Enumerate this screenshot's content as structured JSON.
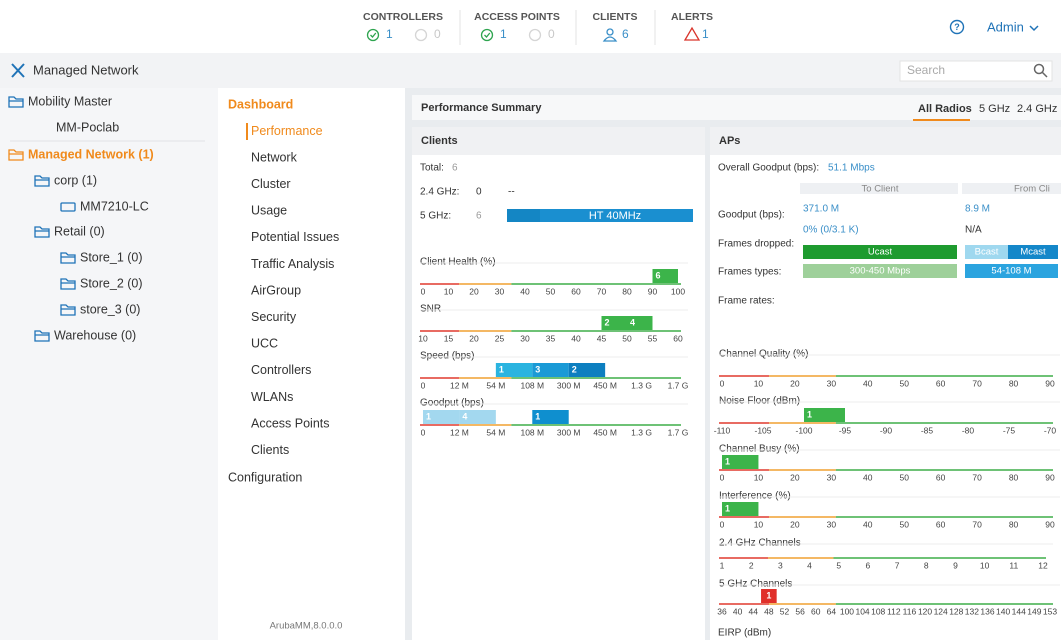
{
  "header": {
    "stats": [
      {
        "label": "CONTROLLERS",
        "up": 1,
        "down": 0
      },
      {
        "label": "ACCESS POINTS",
        "up": 1,
        "down": 0
      },
      {
        "label": "CLIENTS",
        "count": 6
      },
      {
        "label": "ALERTS",
        "count": 1
      }
    ],
    "user": "Admin"
  },
  "nav": {
    "title": "Managed Network",
    "search_placeholder": "Search"
  },
  "tree": [
    {
      "label": "Mobility Master",
      "children": [
        {
          "label": "MM-Poclab"
        }
      ]
    },
    {
      "label": "Managed Network (1)",
      "children": [
        {
          "label": "corp (1)",
          "children": [
            {
              "label": "MM7210-LC"
            }
          ]
        },
        {
          "label": "Retail (0)",
          "children": [
            {
              "label": "Store_1 (0)"
            },
            {
              "label": "Store_2 (0)"
            },
            {
              "label": "store_3 (0)"
            }
          ]
        },
        {
          "label": "Warehouse (0)"
        }
      ]
    }
  ],
  "menu": {
    "title": "Dashboard",
    "items": [
      "Performance",
      "Network",
      "Cluster",
      "Usage",
      "Potential Issues",
      "Traffic Analysis",
      "AirGroup",
      "Security",
      "UCC",
      "Controllers",
      "WLANs",
      "Access Points",
      "Clients"
    ],
    "configuration": "Configuration",
    "version": "ArubaMM,8.0.0.0"
  },
  "summary": {
    "title": "Performance Summary",
    "tabs": [
      "All Radios",
      "5 GHz",
      "2.4 GHz"
    ]
  },
  "clients": {
    "title": "Clients",
    "total": {
      "label": "Total:",
      "value": 6
    },
    "band24": {
      "label": "2.4 GHz:",
      "value": 0,
      "mode": "--"
    },
    "band5": {
      "label": "5 GHz:",
      "value": 6,
      "mode": "HT 40MHz"
    },
    "charts": [
      {
        "title": "Client Health (%)",
        "ticks": [
          0,
          10,
          20,
          30,
          40,
          50,
          60,
          70,
          80,
          90,
          100
        ],
        "bars": [
          {
            "count": 6,
            "from": 90,
            "to": 100,
            "color": "#3cb44a"
          }
        ]
      },
      {
        "title": "SNR",
        "ticks": [
          10,
          15,
          20,
          25,
          30,
          35,
          40,
          45,
          50,
          55,
          60
        ],
        "bars": [
          {
            "count": 2,
            "from": 45,
            "to": 50,
            "color": "#3cb44a"
          },
          {
            "count": 4,
            "from": 50,
            "to": 55,
            "color": "#3cb44a"
          }
        ]
      },
      {
        "title": "Speed (bps)",
        "ticks": [
          "0",
          "12 M",
          "54 M",
          "108 M",
          "300 M",
          "450 M",
          "1.3 G",
          "1.7 G"
        ],
        "bars": [
          {
            "count": 1,
            "from": "54 M",
            "to": "108 M",
            "color": "#2ab4e0"
          },
          {
            "count": 3,
            "from": "108 M",
            "to": "300 M",
            "color": "#1a9ad6"
          },
          {
            "count": 2,
            "from": "300 M",
            "to": "450 M",
            "color": "#0d7fc0"
          }
        ]
      },
      {
        "title": "Goodput (bps)",
        "ticks": [
          "0",
          "12 M",
          "54 M",
          "108 M",
          "300 M",
          "450 M",
          "1.3 G",
          "1.7 G"
        ],
        "bars": [
          {
            "count": 1,
            "from": "0",
            "to": "12 M",
            "color": "#a3d8ef"
          },
          {
            "count": 4,
            "from": "12 M",
            "to": "54 M",
            "color": "#a3d8ef"
          },
          {
            "count": 1,
            "from": "108 M",
            "to": "300 M",
            "color": "#0f8fcf"
          }
        ]
      }
    ]
  },
  "aps": {
    "title": "APs",
    "overall": {
      "label": "Overall Goodput (bps):",
      "value": "51.1 Mbps"
    },
    "columns": [
      "To Client",
      "From Cli"
    ],
    "goodput": {
      "label": "Goodput (bps):",
      "values": [
        "371.0 M",
        "8.9 M"
      ],
      "drops": [
        "0% (0/3.1 K)",
        "N/A"
      ]
    },
    "frames_dropped": "Frames dropped:",
    "frame_types": "Frames types:",
    "frame_rates": "Frame rates:",
    "type_bars": [
      [
        "Ucast"
      ],
      [
        "Bcast",
        "Mcast"
      ]
    ],
    "rate_bars": [
      [
        "300-450 Mbps"
      ],
      [
        "54-108 M"
      ]
    ],
    "charts": [
      {
        "title": "Channel Quality (%)",
        "ticks": [
          0,
          10,
          20,
          30,
          40,
          50,
          60,
          70,
          80,
          90
        ]
      },
      {
        "title": "Noise Floor (dBm)",
        "ticks": [
          -110,
          -105,
          -100,
          -95,
          -90,
          -85,
          -80,
          -75,
          -70
        ],
        "bars": [
          {
            "count": 1,
            "from": -100,
            "to": -95,
            "color": "#3cb44a"
          }
        ]
      },
      {
        "title": "Channel Busy (%)",
        "ticks": [
          0,
          10,
          20,
          30,
          40,
          50,
          60,
          70,
          80,
          90
        ],
        "bars": [
          {
            "count": 1,
            "from": 0,
            "to": 10,
            "color": "#3cb44a"
          }
        ]
      },
      {
        "title": "Interference (%)",
        "ticks": [
          0,
          10,
          20,
          30,
          40,
          50,
          60,
          70,
          80,
          90
        ],
        "bars": [
          {
            "count": 1,
            "from": 0,
            "to": 10,
            "color": "#3cb44a"
          }
        ]
      },
      {
        "title": "2.4 GHz Channels",
        "ticks": [
          1,
          2,
          3,
          4,
          5,
          6,
          7,
          8,
          9,
          10,
          11,
          12
        ]
      },
      {
        "title": "5 GHz Channels",
        "ticks": [
          36,
          40,
          44,
          48,
          52,
          56,
          60,
          64,
          100,
          104,
          108,
          112,
          116,
          120,
          124,
          128,
          132,
          136,
          140,
          144,
          149,
          153
        ],
        "bars": [
          {
            "count": 1,
            "at": 48,
            "color": "#e0302a"
          }
        ]
      }
    ],
    "next_chart": "EIRP (dBm)"
  }
}
